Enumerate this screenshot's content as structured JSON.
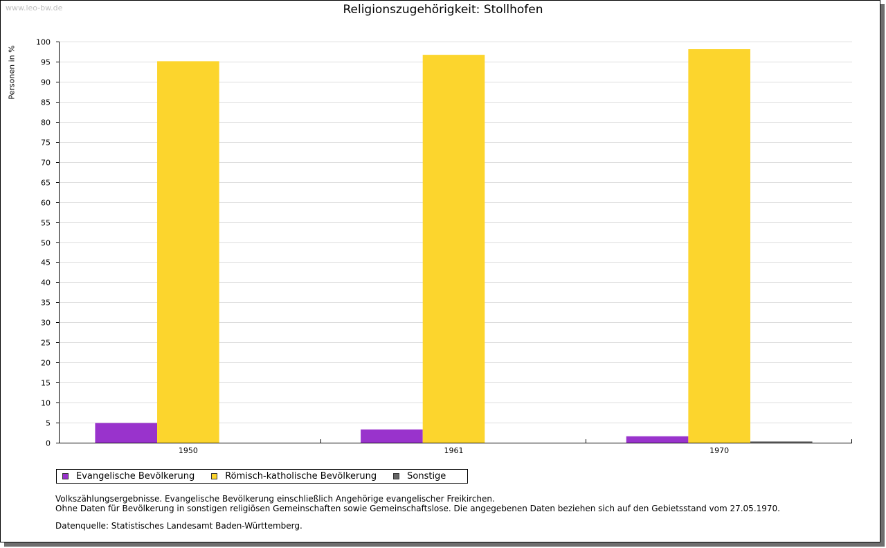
{
  "watermark": "www.leo-bw.de",
  "chart_data": {
    "type": "bar",
    "title": "Religionszugehörigkeit: Stollhofen",
    "xlabel": "",
    "ylabel": "Personen in %",
    "categories": [
      "1950",
      "1961",
      "1970"
    ],
    "ylim": [
      0,
      100
    ],
    "yticks": [
      "0",
      "5",
      "10",
      "15",
      "20",
      "25",
      "30",
      "35",
      "40",
      "45",
      "50",
      "55",
      "60",
      "65",
      "70",
      "75",
      "80",
      "85",
      "90",
      "95",
      "100"
    ],
    "grid": true,
    "legend_position": "bottom",
    "series": [
      {
        "name": "Evangelische Bevölkerung",
        "color": "#9933cc",
        "values": [
          4.9,
          3.3,
          1.6
        ]
      },
      {
        "name": "Römisch-katholische Bevölkerung",
        "color": "#fcd52d",
        "values": [
          95.1,
          96.7,
          98.1
        ]
      },
      {
        "name": "Sonstige",
        "color": "#666666",
        "values": [
          0,
          0,
          0.3
        ]
      }
    ]
  },
  "notes": {
    "line1": "Volkszählungsergebnisse. Evangelische Bevölkerung einschließlich Angehörige evangelischer Freikirchen.",
    "line2": "Ohne Daten für Bevölkerung in sonstigen religiösen Gemeinschaften sowie Gemeinschaftslose. Die angegebenen Daten beziehen sich auf den Gebietsstand vom 27.05.1970.",
    "source": "Datenquelle: Statistisches Landesamt Baden-Württemberg."
  }
}
